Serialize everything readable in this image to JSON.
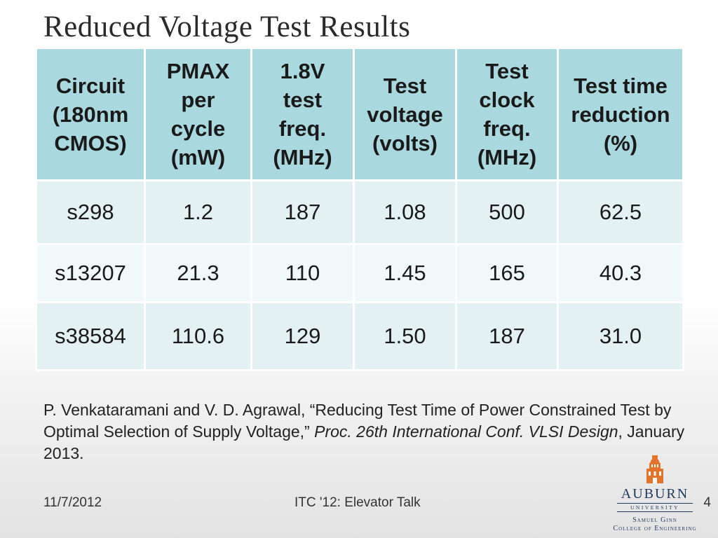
{
  "title": "Reduced Voltage Test Results",
  "table": {
    "headers": [
      [
        "Circuit",
        "(180nm",
        "CMOS)"
      ],
      [
        "PMAX",
        "per",
        "cycle",
        "(mW)"
      ],
      [
        "1.8V",
        "test",
        "freq.",
        "(MHz)"
      ],
      [
        "Test",
        "voltage",
        "(volts)"
      ],
      [
        "Test",
        "clock",
        "freq.",
        "(MHz)"
      ],
      [
        "Test time",
        "reduction",
        "(%)"
      ]
    ],
    "rows": [
      [
        "s298",
        "1.2",
        "187",
        "1.08",
        "500",
        "62.5"
      ],
      [
        "s13207",
        "21.3",
        "110",
        "1.45",
        "165",
        "40.3"
      ],
      [
        "s38584",
        "110.6",
        "129",
        "1.50",
        "187",
        "31.0"
      ]
    ]
  },
  "citation": {
    "authors": "P. Venkataramani and V. D. Agrawal, ",
    "paper_title": "“Reducing Test Time of Power Constrained Test by Optimal Selection of Supply Voltage,” ",
    "venue": "Proc. 26th International Conf. VLSI Design",
    "date": ", January 2013."
  },
  "footer": {
    "date": "11/7/2012",
    "talk": "ITC '12: Elevator Talk",
    "page": "4"
  },
  "logo": {
    "icon": "samford-tower-icon",
    "name": "AUBURN",
    "sub": "UNIVERSITY",
    "college_1": "Samuel Ginn",
    "college_2": "College of Engineering"
  }
}
